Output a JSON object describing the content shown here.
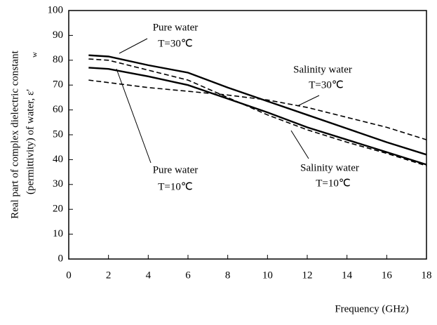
{
  "chart_data": {
    "type": "line",
    "x_label": "Frequency (GHz)",
    "y_label": [
      "Real part of complex dielectric constant",
      "(permittivity) of water, ε'",
      "w"
    ],
    "x": [
      1,
      2,
      4,
      6,
      8,
      10,
      12,
      14,
      16,
      18
    ],
    "series": [
      {
        "name": "Pure water T=30℃",
        "color": "#000000",
        "dash": false,
        "values": [
          82,
          81.5,
          78,
          75,
          69,
          63.5,
          58,
          52.5,
          47,
          42
        ]
      },
      {
        "name": "Pure water T=10℃",
        "color": "#000000",
        "dash": false,
        "values": [
          77,
          76.5,
          73.5,
          70,
          64.5,
          59,
          53,
          48,
          43,
          38
        ]
      },
      {
        "name": "Salinity water T=30℃",
        "color": "#000000",
        "dash": true,
        "values": [
          72,
          71,
          69,
          67.5,
          66,
          64,
          61,
          57,
          53,
          48
        ]
      },
      {
        "name": "Salinity water T=10℃",
        "color": "#000000",
        "dash": true,
        "values": [
          80.5,
          80,
          76,
          72,
          65,
          58,
          52,
          47,
          42.5,
          37.5
        ]
      }
    ],
    "annotations": [
      "Pure water",
      "T=30℃",
      "Salinity water",
      "T=30℃",
      "Pure water",
      "T=10℃",
      "Salinity water",
      "T=10℃"
    ],
    "xlim": [
      0,
      18
    ],
    "ylim": [
      0,
      100
    ],
    "xticks": [
      0,
      2,
      4,
      6,
      8,
      10,
      12,
      14,
      16,
      18
    ],
    "yticks": [
      0,
      10,
      20,
      30,
      40,
      50,
      60,
      70,
      80,
      90,
      100
    ],
    "grid": false
  }
}
